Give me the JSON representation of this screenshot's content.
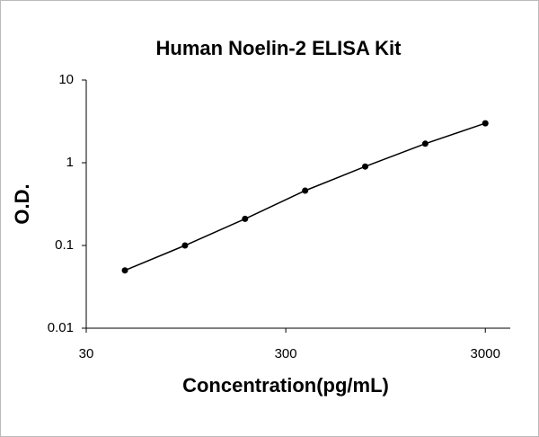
{
  "chart_data": {
    "type": "scatter",
    "title": "Human Noelin-2 ELISA Kit",
    "x_label": "Concentration(pg/mL)",
    "y_label": "O.D.",
    "x": [
      46.875,
      93.75,
      187.5,
      375,
      750,
      1500,
      3000
    ],
    "series": [
      {
        "values": [
          0.05,
          0.1,
          0.21,
          0.46,
          0.9,
          1.7,
          3.0
        ],
        "color": "#000000"
      }
    ],
    "xscale": "log",
    "yscale": "log",
    "xlim": [
      30,
      4000
    ],
    "ylim": [
      0.01,
      10
    ],
    "xticks": [
      30,
      300,
      3000
    ],
    "yticks": [
      0.01,
      0.1,
      1,
      10
    ],
    "grid": false
  }
}
